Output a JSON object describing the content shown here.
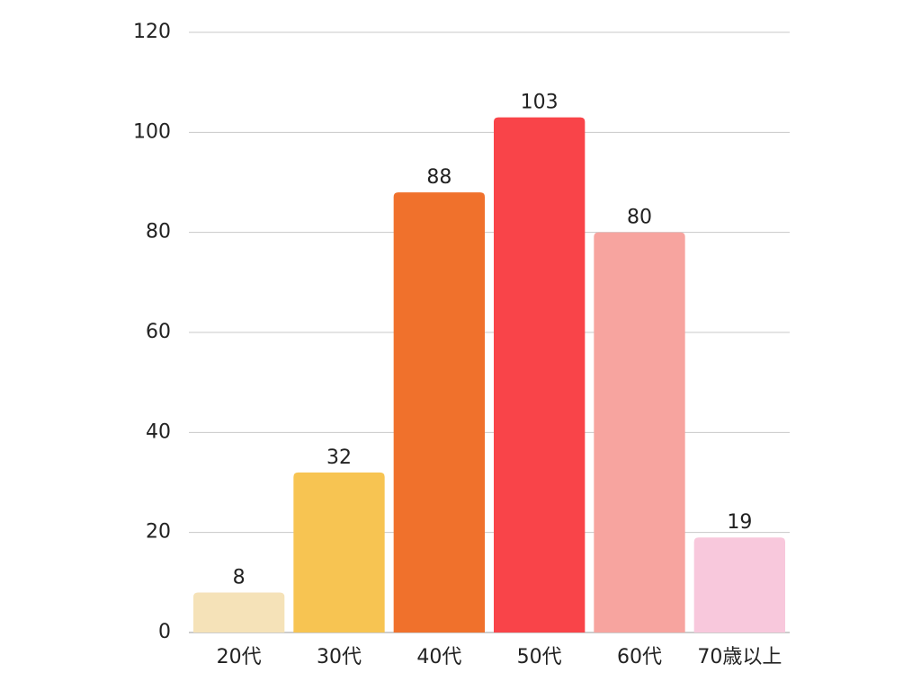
{
  "chart_data": {
    "type": "bar",
    "categories": [
      "20代",
      "30代",
      "40代",
      "50代",
      "60代",
      "70歳以上"
    ],
    "values": [
      8,
      32,
      88,
      103,
      80,
      19
    ],
    "colors": [
      "#f5e2b8",
      "#f7c452",
      "#f0712c",
      "#f94449",
      "#f7a49f",
      "#f8c8dc"
    ],
    "ylim": [
      0,
      120
    ],
    "yticks": [
      0,
      20,
      40,
      60,
      80,
      100,
      120
    ],
    "grid": true
  }
}
